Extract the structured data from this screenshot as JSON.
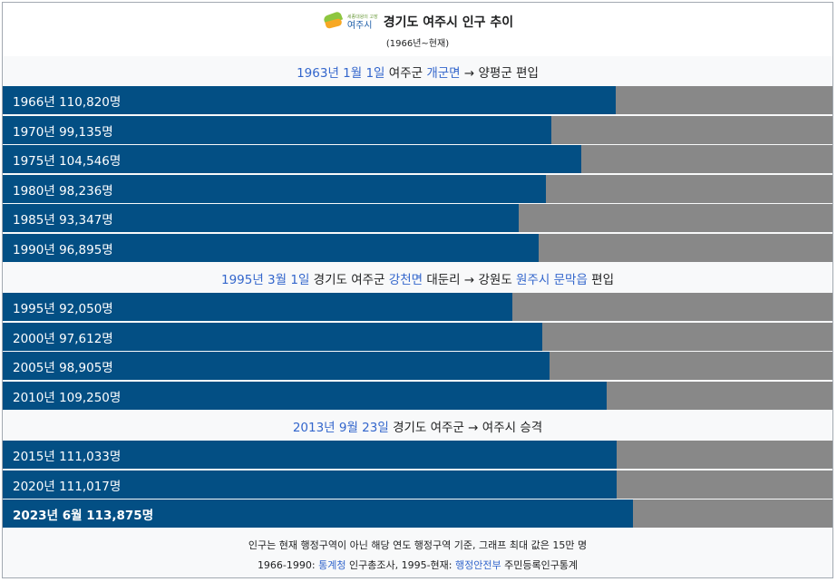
{
  "header": {
    "logo_text": "여주시",
    "logo_small": "세종대왕의 고장",
    "title": "경기도 여주시 인구 추이",
    "subtitle": "(1966년~현재)"
  },
  "events": [
    {
      "segments": [
        {
          "text": "1963년 1월 1일",
          "link": true
        },
        {
          "text": " 여주군 ",
          "link": false
        },
        {
          "text": "개군면",
          "link": true
        },
        {
          "text": " → 양평군 편입",
          "link": false
        }
      ]
    },
    {
      "segments": [
        {
          "text": "1995년 3월 1일",
          "link": true
        },
        {
          "text": " 경기도 여주군 ",
          "link": false
        },
        {
          "text": "강천면",
          "link": true
        },
        {
          "text": " 대둔리 → 강원도 ",
          "link": false
        },
        {
          "text": "원주시",
          "link": true
        },
        {
          "text": " ",
          "link": false
        },
        {
          "text": "문막읍",
          "link": true
        },
        {
          "text": " 편입",
          "link": false
        }
      ]
    },
    {
      "segments": [
        {
          "text": "2013년 9월 23일",
          "link": true
        },
        {
          "text": " 경기도 여주군 → 여주시 승격",
          "link": false
        }
      ]
    }
  ],
  "chart_data": {
    "type": "bar",
    "orientation": "horizontal",
    "title": "경기도 여주시 인구 추이",
    "subtitle": "(1966년~현재)",
    "xlim": [
      0,
      150000
    ],
    "categories": [
      "1966년",
      "1970년",
      "1975년",
      "1980년",
      "1985년",
      "1990년",
      "1995년",
      "2000년",
      "2005년",
      "2010년",
      "2015년",
      "2020년",
      "2023년 6월"
    ],
    "values": [
      110820,
      99135,
      104546,
      98236,
      93347,
      96895,
      92050,
      97612,
      98905,
      109250,
      111033,
      111017,
      113875
    ],
    "labels": [
      "1966년 110,820명",
      "1970년 99,135명",
      "1975년 104,546명",
      "1980년 98,236명",
      "1985년 93,347명",
      "1990년 96,895명",
      "1995년 92,050명",
      "2000년 97,612명",
      "2005년 98,905명",
      "2010년 109,250명",
      "2015년 111,033명",
      "2020년 111,017명",
      "2023년 6월 113,875명"
    ],
    "colors": {
      "bar": "#034f84",
      "track": "#888888"
    }
  },
  "footer": {
    "note": "인구는 현재 행정구역이 아닌 해당 연도 행정구역 기준, 그래프 최대 값은 15만 명",
    "source_segments": [
      {
        "text": "1966-1990: ",
        "link": false
      },
      {
        "text": "통계청",
        "link": true
      },
      {
        "text": " 인구총조사, 1995-현재: ",
        "link": false
      },
      {
        "text": "행정안전부",
        "link": true
      },
      {
        "text": " 주민등록인구통계",
        "link": false
      }
    ]
  }
}
